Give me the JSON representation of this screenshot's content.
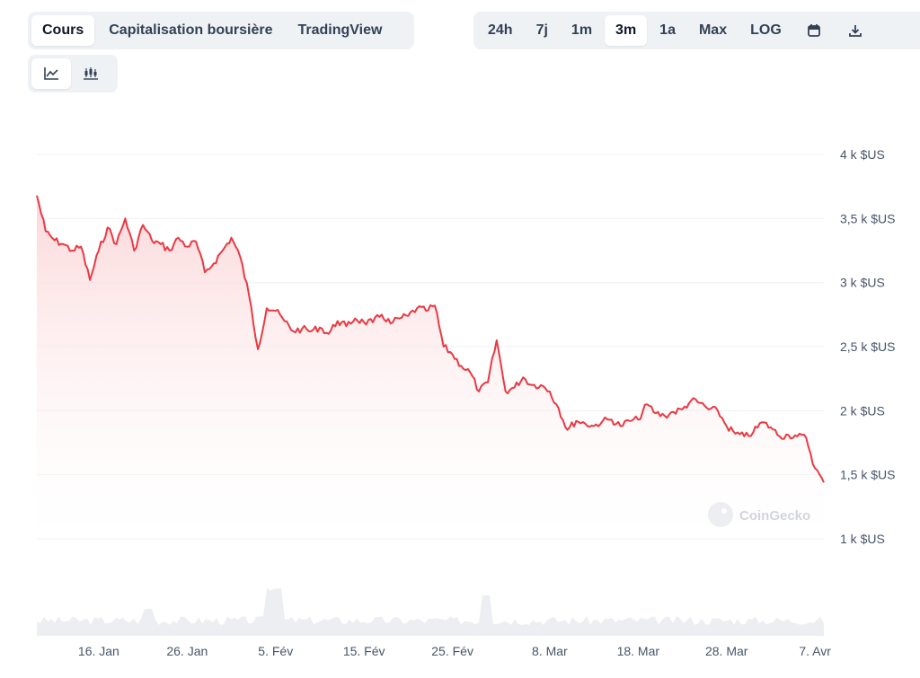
{
  "tabs": [
    {
      "label": "Cours",
      "active": true
    },
    {
      "label": "Capitalisation boursière",
      "active": false
    },
    {
      "label": "TradingView",
      "active": false
    }
  ],
  "ranges": [
    {
      "label": "24h",
      "active": false
    },
    {
      "label": "7j",
      "active": false
    },
    {
      "label": "1m",
      "active": false
    },
    {
      "label": "3m",
      "active": true
    },
    {
      "label": "1a",
      "active": false
    },
    {
      "label": "Max",
      "active": false
    },
    {
      "label": "LOG",
      "active": false
    }
  ],
  "icons": {
    "calendar": "calendar-icon",
    "download": "download-icon",
    "line_chart": "line-chart-icon",
    "candlestick": "candlestick-chart-icon"
  },
  "watermark": "CoinGecko",
  "colors": {
    "line": "#ea3943",
    "area_top": "#fbd3d5",
    "area_bottom": "#ffffff",
    "volume": "#e5e7eb"
  },
  "chart_data": {
    "type": "area",
    "title": "",
    "xlabel": "",
    "ylabel": "",
    "ylim": [
      1000,
      4000
    ],
    "yticks": [
      {
        "value": 4000,
        "label": "4 k $US"
      },
      {
        "value": 3500,
        "label": "3,5 k $US"
      },
      {
        "value": 3000,
        "label": "3 k $US"
      },
      {
        "value": 2500,
        "label": "2,5 k $US"
      },
      {
        "value": 2000,
        "label": "2 k $US"
      },
      {
        "value": 1500,
        "label": "1,5 k $US"
      },
      {
        "value": 1000,
        "label": "1 k $US"
      }
    ],
    "xlim": [
      "2025-01-09",
      "2025-04-08"
    ],
    "xticks": [
      {
        "date": "2025-01-16",
        "label": "16. Jan"
      },
      {
        "date": "2025-01-26",
        "label": "26. Jan"
      },
      {
        "date": "2025-02-05",
        "label": "5. Fév"
      },
      {
        "date": "2025-02-15",
        "label": "15. Fév"
      },
      {
        "date": "2025-02-25",
        "label": "25. Fév"
      },
      {
        "date": "2025-03-08",
        "label": "8. Mar"
      },
      {
        "date": "2025-03-18",
        "label": "18. Mar"
      },
      {
        "date": "2025-03-28",
        "label": "28. Mar"
      },
      {
        "date": "2025-04-07",
        "label": "7. Avr"
      }
    ],
    "grid": true,
    "series": [
      {
        "points": [
          [
            "2025-01-09",
            3680
          ],
          [
            "2025-01-10",
            3400
          ],
          [
            "2025-01-11",
            3330
          ],
          [
            "2025-01-12",
            3300
          ],
          [
            "2025-01-13",
            3250
          ],
          [
            "2025-01-14",
            3280
          ],
          [
            "2025-01-15",
            3020
          ],
          [
            "2025-01-16",
            3250
          ],
          [
            "2025-01-17",
            3430
          ],
          [
            "2025-01-18",
            3300
          ],
          [
            "2025-01-19",
            3500
          ],
          [
            "2025-01-20",
            3250
          ],
          [
            "2025-01-21",
            3450
          ],
          [
            "2025-01-22",
            3330
          ],
          [
            "2025-01-23",
            3300
          ],
          [
            "2025-01-24",
            3250
          ],
          [
            "2025-01-25",
            3350
          ],
          [
            "2025-01-26",
            3280
          ],
          [
            "2025-01-27",
            3320
          ],
          [
            "2025-01-28",
            3080
          ],
          [
            "2025-01-29",
            3150
          ],
          [
            "2025-01-30",
            3250
          ],
          [
            "2025-01-31",
            3350
          ],
          [
            "2025-02-01",
            3200
          ],
          [
            "2025-02-02",
            2900
          ],
          [
            "2025-02-03",
            2480
          ],
          [
            "2025-02-04",
            2800
          ],
          [
            "2025-02-05",
            2780
          ],
          [
            "2025-02-06",
            2700
          ],
          [
            "2025-02-07",
            2620
          ],
          [
            "2025-02-08",
            2640
          ],
          [
            "2025-02-09",
            2620
          ],
          [
            "2025-02-10",
            2650
          ],
          [
            "2025-02-11",
            2600
          ],
          [
            "2025-02-12",
            2700
          ],
          [
            "2025-02-13",
            2660
          ],
          [
            "2025-02-14",
            2720
          ],
          [
            "2025-02-15",
            2690
          ],
          [
            "2025-02-16",
            2690
          ],
          [
            "2025-02-17",
            2750
          ],
          [
            "2025-02-18",
            2680
          ],
          [
            "2025-02-19",
            2720
          ],
          [
            "2025-02-20",
            2740
          ],
          [
            "2025-02-21",
            2800
          ],
          [
            "2025-02-22",
            2780
          ],
          [
            "2025-02-23",
            2820
          ],
          [
            "2025-02-24",
            2500
          ],
          [
            "2025-02-25",
            2440
          ],
          [
            "2025-02-26",
            2350
          ],
          [
            "2025-02-27",
            2300
          ],
          [
            "2025-02-28",
            2150
          ],
          [
            "2025-03-01",
            2220
          ],
          [
            "2025-03-02",
            2550
          ],
          [
            "2025-03-03",
            2150
          ],
          [
            "2025-03-04",
            2180
          ],
          [
            "2025-03-05",
            2260
          ],
          [
            "2025-03-06",
            2200
          ],
          [
            "2025-03-07",
            2200
          ],
          [
            "2025-03-08",
            2150
          ],
          [
            "2025-03-09",
            2020
          ],
          [
            "2025-03-10",
            1850
          ],
          [
            "2025-03-11",
            1920
          ],
          [
            "2025-03-12",
            1900
          ],
          [
            "2025-03-13",
            1880
          ],
          [
            "2025-03-14",
            1920
          ],
          [
            "2025-03-15",
            1930
          ],
          [
            "2025-03-16",
            1880
          ],
          [
            "2025-03-17",
            1920
          ],
          [
            "2025-03-18",
            1930
          ],
          [
            "2025-03-19",
            2050
          ],
          [
            "2025-03-20",
            1980
          ],
          [
            "2025-03-21",
            1960
          ],
          [
            "2025-03-22",
            1990
          ],
          [
            "2025-03-23",
            2010
          ],
          [
            "2025-03-24",
            2080
          ],
          [
            "2025-03-25",
            2060
          ],
          [
            "2025-03-26",
            2010
          ],
          [
            "2025-03-27",
            2000
          ],
          [
            "2025-03-28",
            1880
          ],
          [
            "2025-03-29",
            1820
          ],
          [
            "2025-03-30",
            1800
          ],
          [
            "2025-03-31",
            1830
          ],
          [
            "2025-04-01",
            1910
          ],
          [
            "2025-04-02",
            1870
          ],
          [
            "2025-04-03",
            1800
          ],
          [
            "2025-04-04",
            1810
          ],
          [
            "2025-04-05",
            1800
          ],
          [
            "2025-04-06",
            1790
          ],
          [
            "2025-04-07",
            1550
          ],
          [
            "2025-04-08",
            1440
          ]
        ]
      }
    ]
  }
}
